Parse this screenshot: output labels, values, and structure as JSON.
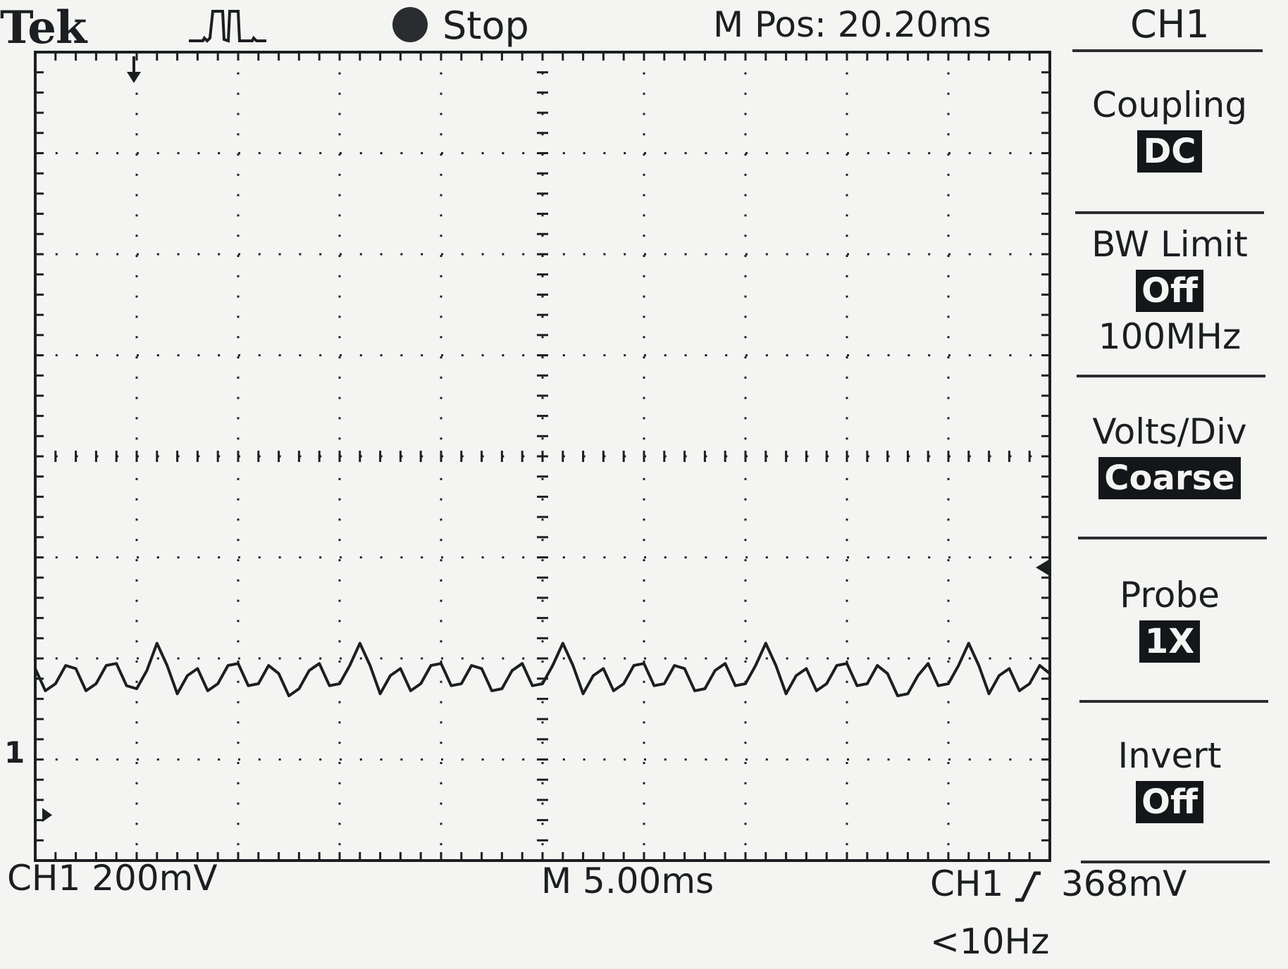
{
  "header": {
    "brand": "Tek",
    "trigger_status_icon": "trigger-pulse-icon",
    "run_state_icon": "record-dot-icon",
    "run_state": "Stop",
    "main_position": "M Pos: 20.20ms",
    "channel": "CH1"
  },
  "side_menu": {
    "items": [
      {
        "title": "Coupling",
        "value": "DC"
      },
      {
        "title": "BW Limit",
        "value": "Off",
        "extra": "100MHz"
      },
      {
        "title": "Volts/Div",
        "value": "Coarse"
      },
      {
        "title": "Probe",
        "value": "1X"
      },
      {
        "title": "Invert",
        "value": "Off"
      }
    ]
  },
  "screen": {
    "ch1_ground_marker": "1",
    "trigger_level_marker_icon": "trigger-level-arrow-icon",
    "trigger_position_marker_icon": "trigger-position-arrow-icon"
  },
  "status": {
    "ch1_scale": "CH1  200mV",
    "timebase": "M 5.00ms",
    "trigger_channel": "CH1",
    "trigger_slope_icon": "rising-edge-icon",
    "trigger_level": "368mV",
    "trigger_frequency": "<10Hz"
  },
  "colors": {
    "background": "#f4f5f3",
    "trace": "#1b1f22",
    "highlight_bg": "#141719"
  },
  "chart_data": {
    "type": "line",
    "x_divisions": 10,
    "y_divisions": 8,
    "volts_per_div": "200mV",
    "time_per_div": "5.00ms",
    "grid": true,
    "series": [
      {
        "x_div": [
          0.0,
          0.2,
          0.4,
          0.6,
          0.8,
          1.0,
          1.2,
          1.4,
          1.6,
          1.8,
          2.0,
          2.2,
          2.4,
          2.6,
          2.8,
          3.0,
          3.2,
          3.4,
          3.6,
          3.8,
          4.0,
          4.2,
          4.4,
          4.6,
          4.8,
          5.0,
          5.2,
          5.4,
          5.6,
          5.8,
          6.0,
          6.2,
          6.4,
          6.6,
          6.8,
          7.0,
          7.2,
          7.4,
          7.6,
          7.8,
          8.0,
          8.2,
          8.4,
          8.6,
          8.8,
          9.0,
          9.2,
          9.4,
          9.6,
          9.8,
          10.0
        ],
        "y_div": [
          0.65,
          0.5,
          0.65,
          0.5,
          0.7,
          0.45,
          0.9,
          0.4,
          0.65,
          0.5,
          0.7,
          0.5,
          0.6,
          0.45,
          0.7,
          0.5,
          0.9,
          0.4,
          0.65,
          0.5,
          0.7,
          0.5,
          0.65,
          0.45,
          0.7,
          0.5,
          0.9,
          0.4,
          0.65,
          0.5,
          0.7,
          0.5,
          0.65,
          0.45,
          0.7,
          0.5,
          0.9,
          0.4,
          0.65,
          0.5,
          0.7,
          0.5,
          0.6,
          0.4,
          0.7,
          0.5,
          0.9,
          0.4,
          0.65,
          0.5,
          0.6
        ]
      }
    ]
  }
}
